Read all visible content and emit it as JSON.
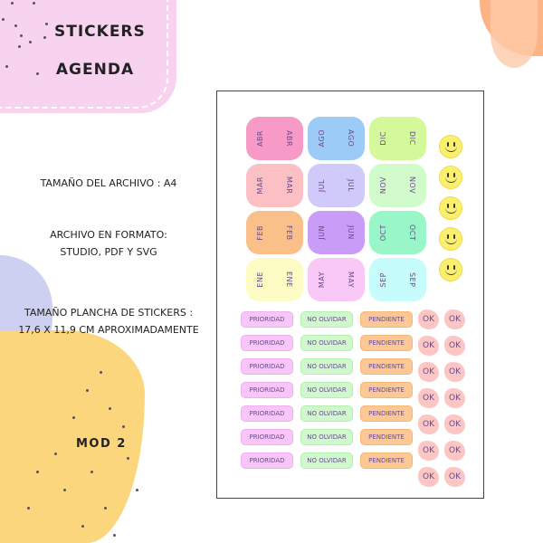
{
  "title": {
    "line1": "STICKERS",
    "line2": "AGENDA"
  },
  "info": {
    "file_size": "TAMAÑO DEL ARCHIVO : A4",
    "format_line1": "ARCHIVO EN FORMATO:",
    "format_line2": "STUDIO, PDF Y SVG",
    "sheet_size_line1": "TAMAÑO PLANCHA DE STICKERS :",
    "sheet_size_line2": "17,6 X 11,9 CM APROXIMADAMENTE"
  },
  "model": "MOD 2",
  "months": [
    [
      {
        "label": "ABR",
        "color": "#f79ac8"
      },
      {
        "label": "AGO",
        "color": "#9ccbf7"
      },
      {
        "label": "DIC",
        "color": "#d4f99a"
      }
    ],
    [
      {
        "label": "MAR",
        "color": "#fcc0c4"
      },
      {
        "label": "JUL",
        "color": "#cfcaf9"
      },
      {
        "label": "NOV",
        "color": "#d2fbcc"
      }
    ],
    [
      {
        "label": "FEB",
        "color": "#fbc08a"
      },
      {
        "label": "JUN",
        "color": "#c99cf7"
      },
      {
        "label": "OCT",
        "color": "#99f6c8"
      }
    ],
    [
      {
        "label": "ENE",
        "color": "#fdfcc4"
      },
      {
        "label": "MAY",
        "color": "#f9c8f7"
      },
      {
        "label": "SEP",
        "color": "#c6fcfb"
      }
    ]
  ],
  "smiley_count": 5,
  "labels": [
    {
      "text": "PRIORIDAD",
      "color": "#f9c6f9",
      "border": "#f2aef2"
    },
    {
      "text": "NO OLVIDAR",
      "color": "#cff9cc",
      "border": "#b5efb0"
    },
    {
      "text": "PENDIENTE",
      "color": "#fcc894",
      "border": "#f8b678"
    }
  ],
  "label_rows": 7,
  "ok_text": "OK"
}
